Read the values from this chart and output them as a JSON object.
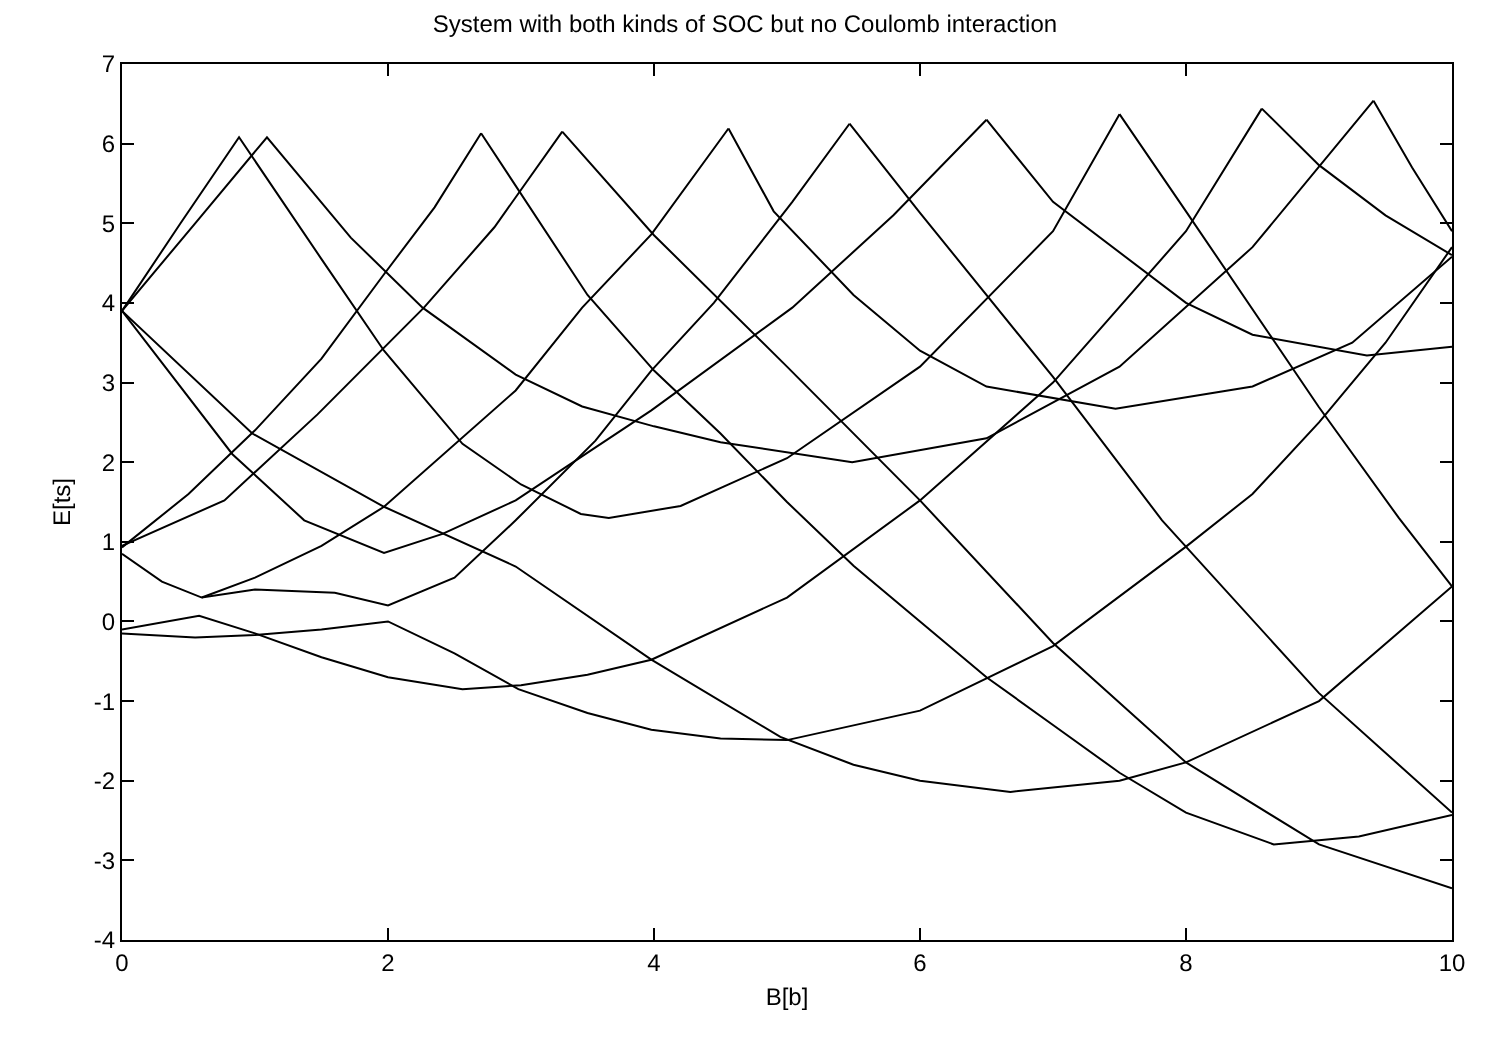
{
  "chart_data": {
    "type": "line",
    "title": "System with both kinds of SOC but no Coulomb interaction",
    "xlabel": "B[b]",
    "ylabel": "E[ts]",
    "xlim": [
      0,
      10
    ],
    "xticks": [
      0,
      2,
      4,
      6,
      8,
      10
    ],
    "ylim": [
      -4,
      7
    ],
    "yticks": [
      -4,
      -3,
      -2,
      -1,
      0,
      1,
      2,
      3,
      4,
      5,
      6,
      7
    ],
    "series": [
      {
        "color": "#000000",
        "x": [
          0,
          0.44,
          0.88,
          1.5,
          1.97,
          2.56,
          3.0,
          3.45,
          3.66,
          4.2,
          5.0,
          6.0,
          7.0,
          7.5
        ],
        "values": [
          3.9,
          5.0,
          6.08,
          4.55,
          3.4,
          2.23,
          1.72,
          1.35,
          1.3,
          1.45,
          2.05,
          3.2,
          4.9,
          6.37
        ]
      },
      {
        "color": "#000000",
        "x": [
          0,
          0.55,
          1.09,
          1.72,
          2.26,
          2.96,
          3.46,
          4.0,
          4.5,
          5.49,
          6.5,
          7.5,
          8.5,
          9.41
        ],
        "values": [
          3.9,
          5.0,
          6.08,
          4.82,
          3.94,
          3.1,
          2.7,
          2.45,
          2.25,
          2.0,
          2.3,
          3.2,
          4.7,
          6.54
        ]
      },
      {
        "color": "#000000",
        "x": [
          0,
          0.5,
          1.0,
          1.5,
          1.97,
          2.35,
          2.7
        ],
        "values": [
          0.93,
          1.6,
          2.4,
          3.3,
          4.36,
          5.2,
          6.13
        ]
      },
      {
        "color": "#000000",
        "x": [
          0,
          0.77,
          1.47,
          2.27,
          2.8,
          3.31
        ],
        "values": [
          0.95,
          1.52,
          2.6,
          3.94,
          4.95,
          6.15
        ]
      },
      {
        "color": "#000000",
        "x": [
          0.6,
          1.0,
          1.5,
          1.97,
          2.96,
          3.46,
          3.98,
          4.56
        ],
        "values": [
          0.3,
          0.55,
          0.95,
          1.44,
          2.9,
          3.94,
          4.86,
          6.19
        ]
      },
      {
        "color": "#000000",
        "x": [
          0,
          0.3,
          0.6,
          1.0,
          1.6,
          2.0,
          2.5,
          2.96,
          3.56,
          3.98,
          4.45,
          5.04,
          5.47
        ],
        "values": [
          0.85,
          0.5,
          0.3,
          0.4,
          0.36,
          0.2,
          0.55,
          1.27,
          2.27,
          3.15,
          4.0,
          5.27,
          6.25
        ]
      },
      {
        "color": "#000000",
        "x": [
          0,
          0.83,
          1.37,
          1.97,
          2.41,
          2.96,
          3.98,
          5.04,
          5.8,
          6.5
        ],
        "values": [
          3.9,
          2.1,
          1.27,
          0.86,
          1.1,
          1.52,
          2.65,
          3.94,
          5.1,
          6.3
        ]
      },
      {
        "color": "#000000",
        "x": [
          0,
          0.55,
          1.0,
          1.5,
          2.0,
          2.5,
          2.98,
          3.5,
          3.98,
          4.5,
          5.0,
          6.0,
          7.0,
          8.0,
          8.5,
          9.0,
          9.5,
          10
        ],
        "values": [
          -0.15,
          -0.2,
          -0.17,
          -0.1,
          0.0,
          -0.4,
          -0.85,
          -1.15,
          -1.36,
          -1.47,
          -1.49,
          -1.12,
          -0.31,
          0.94,
          1.6,
          2.5,
          3.5,
          4.7
        ]
      },
      {
        "color": "#000000",
        "x": [
          0,
          0.58,
          1.0,
          1.5,
          2.0,
          2.56,
          3.0,
          3.5,
          3.98,
          5.0,
          6.0,
          7.0,
          8.0,
          8.57
        ],
        "values": [
          -0.1,
          0.07,
          -0.15,
          -0.45,
          -0.7,
          -0.85,
          -0.8,
          -0.67,
          -0.48,
          0.3,
          1.52,
          3.0,
          4.9,
          6.44
        ]
      },
      {
        "color": "#000000",
        "x": [
          0,
          0.98,
          1.97,
          2.96,
          3.98,
          4.95,
          5.5,
          6.0,
          6.68,
          7.5,
          8.0,
          9.0,
          10
        ],
        "values": [
          3.9,
          2.36,
          1.44,
          0.69,
          -0.48,
          -1.45,
          -1.8,
          -2.0,
          -2.14,
          -2.0,
          -1.77,
          -1.0,
          0.44
        ]
      },
      {
        "color": "#000000",
        "x": [
          2.7,
          3.5,
          4.0,
          4.5,
          5.0,
          5.5,
          6.0,
          6.5,
          7.0,
          7.5,
          8.0,
          8.66,
          9.3,
          10
        ],
        "values": [
          6.13,
          4.1,
          3.15,
          2.36,
          1.5,
          0.7,
          0.0,
          -0.7,
          -1.3,
          -1.9,
          -2.4,
          -2.8,
          -2.7,
          -2.43
        ]
      },
      {
        "color": "#000000",
        "x": [
          3.31,
          4.0,
          5.0,
          6.0,
          7.0,
          8.0,
          9.0,
          10
        ],
        "values": [
          6.15,
          4.85,
          3.2,
          1.52,
          -0.27,
          -1.77,
          -2.8,
          -3.35
        ]
      },
      {
        "color": "#000000",
        "x": [
          4.56,
          4.9,
          5.5,
          6.0,
          6.5,
          7.47,
          8.5,
          9.25,
          10
        ],
        "values": [
          6.19,
          5.15,
          4.1,
          3.4,
          2.95,
          2.67,
          2.95,
          3.5,
          4.58
        ]
      },
      {
        "color": "#000000",
        "x": [
          5.47,
          6.0,
          7.0,
          7.82,
          9.0,
          10
        ],
        "values": [
          6.25,
          5.13,
          3.07,
          1.27,
          -0.9,
          -2.4
        ]
      },
      {
        "color": "#000000",
        "x": [
          6.5,
          7.0,
          8.0,
          8.5,
          9.36,
          10
        ],
        "values": [
          6.3,
          5.27,
          4.0,
          3.6,
          3.34,
          3.45
        ]
      },
      {
        "color": "#000000",
        "x": [
          7.5,
          8.0,
          9.0,
          9.6,
          10
        ],
        "values": [
          6.37,
          5.15,
          2.69,
          1.3,
          0.44
        ]
      },
      {
        "color": "#000000",
        "x": [
          8.57,
          9.0,
          9.5,
          10
        ],
        "values": [
          6.44,
          5.73,
          5.1,
          4.6
        ]
      },
      {
        "color": "#000000",
        "x": [
          9.41,
          9.7,
          10
        ],
        "values": [
          6.54,
          5.7,
          4.9
        ]
      }
    ]
  }
}
